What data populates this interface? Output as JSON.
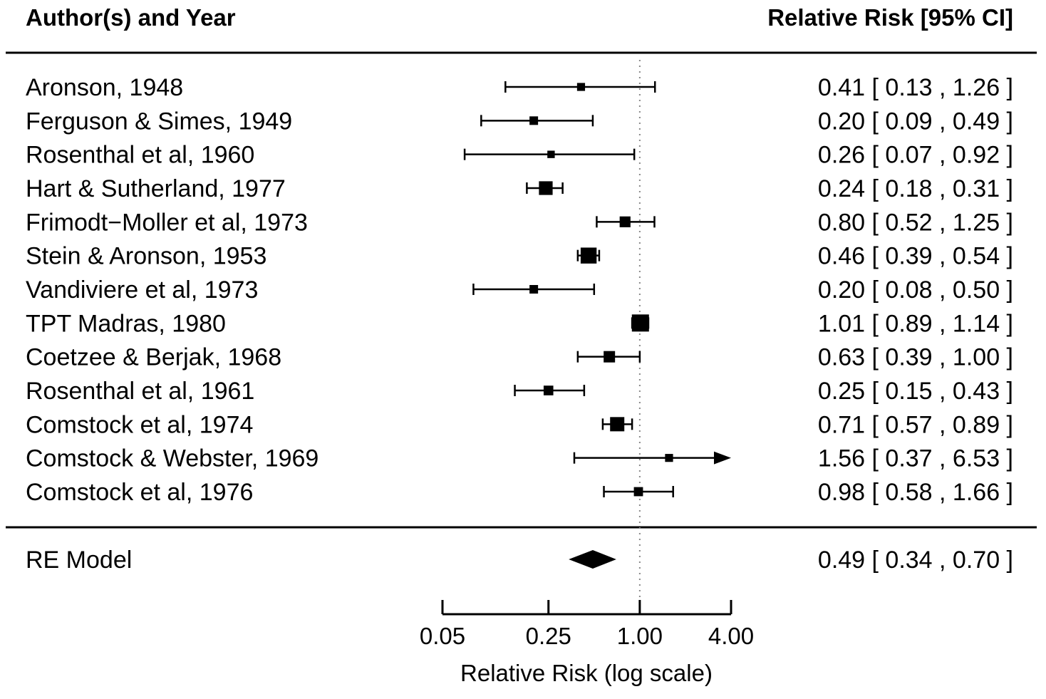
{
  "chart_data": {
    "type": "forest",
    "header_left": "Author(s) and Year",
    "header_right": "Relative Risk [95% CI]",
    "xlabel": "Relative Risk (log scale)",
    "x_scale": "log",
    "x_ticks": [
      0.05,
      0.25,
      1.0,
      4.0
    ],
    "x_tick_labels": [
      "0.05",
      "0.25",
      "1.00",
      "4.00"
    ],
    "reference_line": 1.0,
    "studies": [
      {
        "label": "Aronson, 1948",
        "rr": 0.41,
        "lo": 0.13,
        "hi": 1.26,
        "ci_text": "0.41 [ 0.13 , 1.26 ]",
        "weight": 0.2
      },
      {
        "label": "Ferguson & Simes, 1949",
        "rr": 0.2,
        "lo": 0.09,
        "hi": 0.49,
        "ci_text": "0.20 [ 0.09 , 0.49 ]",
        "weight": 0.25
      },
      {
        "label": "Rosenthal et al, 1960",
        "rr": 0.26,
        "lo": 0.07,
        "hi": 0.92,
        "ci_text": "0.26 [ 0.07 , 0.92 ]",
        "weight": 0.15
      },
      {
        "label": "Hart & Sutherland, 1977",
        "rr": 0.24,
        "lo": 0.18,
        "hi": 0.31,
        "ci_text": "0.24 [ 0.18 , 0.31 ]",
        "weight": 0.7
      },
      {
        "label": "Frimodt−Moller et al, 1973",
        "rr": 0.8,
        "lo": 0.52,
        "hi": 1.25,
        "ci_text": "0.80 [ 0.52 , 1.25 ]",
        "weight": 0.45
      },
      {
        "label": "Stein & Aronson, 1953",
        "rr": 0.46,
        "lo": 0.39,
        "hi": 0.54,
        "ci_text": "0.46 [ 0.39 , 0.54 ]",
        "weight": 0.9
      },
      {
        "label": "Vandiviere et al, 1973",
        "rr": 0.2,
        "lo": 0.08,
        "hi": 0.5,
        "ci_text": "0.20 [ 0.08 , 0.50 ]",
        "weight": 0.25
      },
      {
        "label": "TPT Madras, 1980",
        "rr": 1.01,
        "lo": 0.89,
        "hi": 1.14,
        "ci_text": "1.01 [ 0.89 , 1.14 ]",
        "weight": 1.0
      },
      {
        "label": "Coetzee & Berjak, 1968",
        "rr": 0.63,
        "lo": 0.39,
        "hi": 1.0,
        "ci_text": "0.63 [ 0.39 , 1.00 ]",
        "weight": 0.5
      },
      {
        "label": "Rosenthal et al, 1961",
        "rr": 0.25,
        "lo": 0.15,
        "hi": 0.43,
        "ci_text": "0.25 [ 0.15 , 0.43 ]",
        "weight": 0.35
      },
      {
        "label": "Comstock et al, 1974",
        "rr": 0.71,
        "lo": 0.57,
        "hi": 0.89,
        "ci_text": "0.71 [ 0.57 , 0.89 ]",
        "weight": 0.75
      },
      {
        "label": "Comstock & Webster, 1969",
        "rr": 1.56,
        "lo": 0.37,
        "hi": 6.53,
        "ci_text": "1.56 [ 0.37 , 6.53 ]",
        "weight": 0.2,
        "hi_truncated": true
      },
      {
        "label": "Comstock et al, 1976",
        "rr": 0.98,
        "lo": 0.58,
        "hi": 1.66,
        "ci_text": "0.98 [ 0.58 , 1.66 ]",
        "weight": 0.3
      }
    ],
    "summary": {
      "label": "RE Model",
      "rr": 0.49,
      "lo": 0.34,
      "hi": 0.7,
      "ci_text": "0.49 [ 0.34 , 0.70 ]"
    }
  }
}
